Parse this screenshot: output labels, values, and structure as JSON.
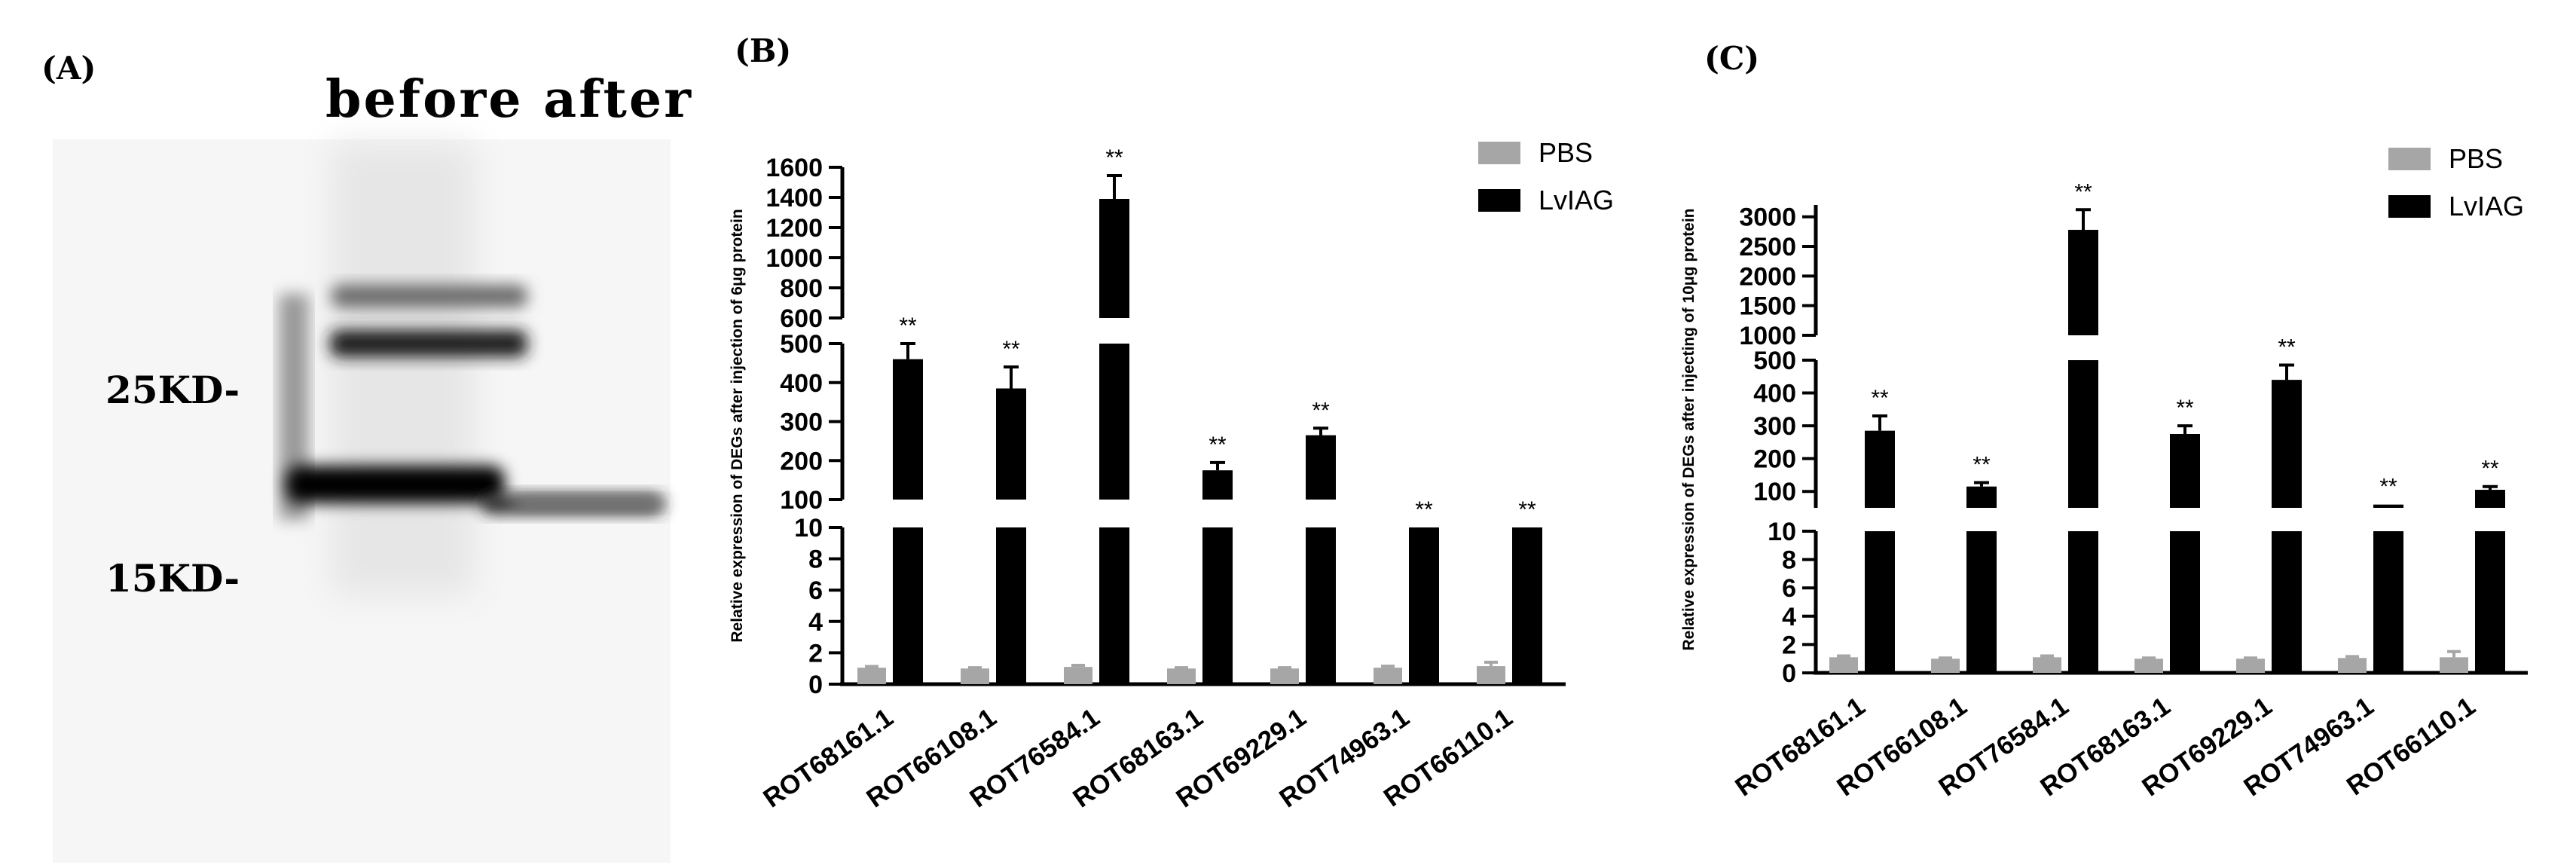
{
  "panel_a": {
    "label": "(A)",
    "header": "before after",
    "markers": [
      "25KD-",
      "15KD-"
    ]
  },
  "chart_data": [
    {
      "panel": "(B)",
      "type": "bar",
      "title": "",
      "ylabel": "Relative expression of DEGs after injection of 6μg  protein",
      "xlabel": "",
      "categories": [
        "ROT68161.1",
        "ROT66108.1",
        "ROT76584.1",
        "ROT68163.1",
        "ROT69229.1",
        "ROT74963.1",
        "ROT66110.1"
      ],
      "series": [
        {
          "name": "PBS",
          "color": "#a6a6a6",
          "values": [
            1.05,
            1.0,
            1.1,
            1.0,
            1.0,
            1.05,
            1.15
          ],
          "errors": [
            0.08,
            0.05,
            0.1,
            0.05,
            0.05,
            0.1,
            0.25
          ]
        },
        {
          "name": "LvIAG",
          "color": "#000000",
          "values": [
            460,
            385,
            1390,
            175,
            265,
            10,
            10
          ],
          "errors": [
            40,
            55,
            155,
            20,
            18,
            0,
            0
          ]
        }
      ],
      "annotation": "**",
      "broken_axis": [
        {
          "range": [
            0,
            10
          ],
          "ticks": [
            0,
            2,
            4,
            6,
            8,
            10
          ]
        },
        {
          "range": [
            100,
            500
          ],
          "ticks": [
            100,
            200,
            300,
            400,
            500
          ]
        },
        {
          "range": [
            600,
            1600
          ],
          "ticks": [
            600,
            800,
            1000,
            1200,
            1400,
            1600
          ]
        }
      ],
      "legend": "top-right"
    },
    {
      "panel": "(C)",
      "type": "bar",
      "title": "",
      "ylabel": "Relative expression of DEGs after injecting of 10μg  protein",
      "xlabel": "",
      "categories": [
        "ROT68161.1",
        "ROT66108.1",
        "ROT76584.1",
        "ROT68163.1",
        "ROT69229.1",
        "ROT74963.1",
        "ROT66110.1"
      ],
      "series": [
        {
          "name": "PBS",
          "color": "#a6a6a6",
          "values": [
            1.1,
            1.0,
            1.1,
            1.0,
            1.0,
            1.05,
            1.1
          ],
          "errors": [
            0.1,
            0.05,
            0.1,
            0.05,
            0.05,
            0.1,
            0.4
          ]
        },
        {
          "name": "LvIAG",
          "color": "#000000",
          "values": [
            285,
            115,
            2780,
            275,
            440,
            60,
            105
          ],
          "errors": [
            45,
            12,
            340,
            25,
            45,
            0,
            10
          ]
        }
      ],
      "annotation": "**",
      "broken_axis": [
        {
          "range": [
            0,
            10
          ],
          "ticks": [
            0,
            2,
            4,
            6,
            8,
            10
          ]
        },
        {
          "range": [
            50,
            500
          ],
          "ticks": [
            100,
            200,
            300,
            400,
            500
          ]
        },
        {
          "range": [
            1000,
            3200
          ],
          "ticks": [
            1000,
            1500,
            2000,
            2500,
            3000
          ]
        }
      ],
      "legend": "top-right"
    }
  ]
}
